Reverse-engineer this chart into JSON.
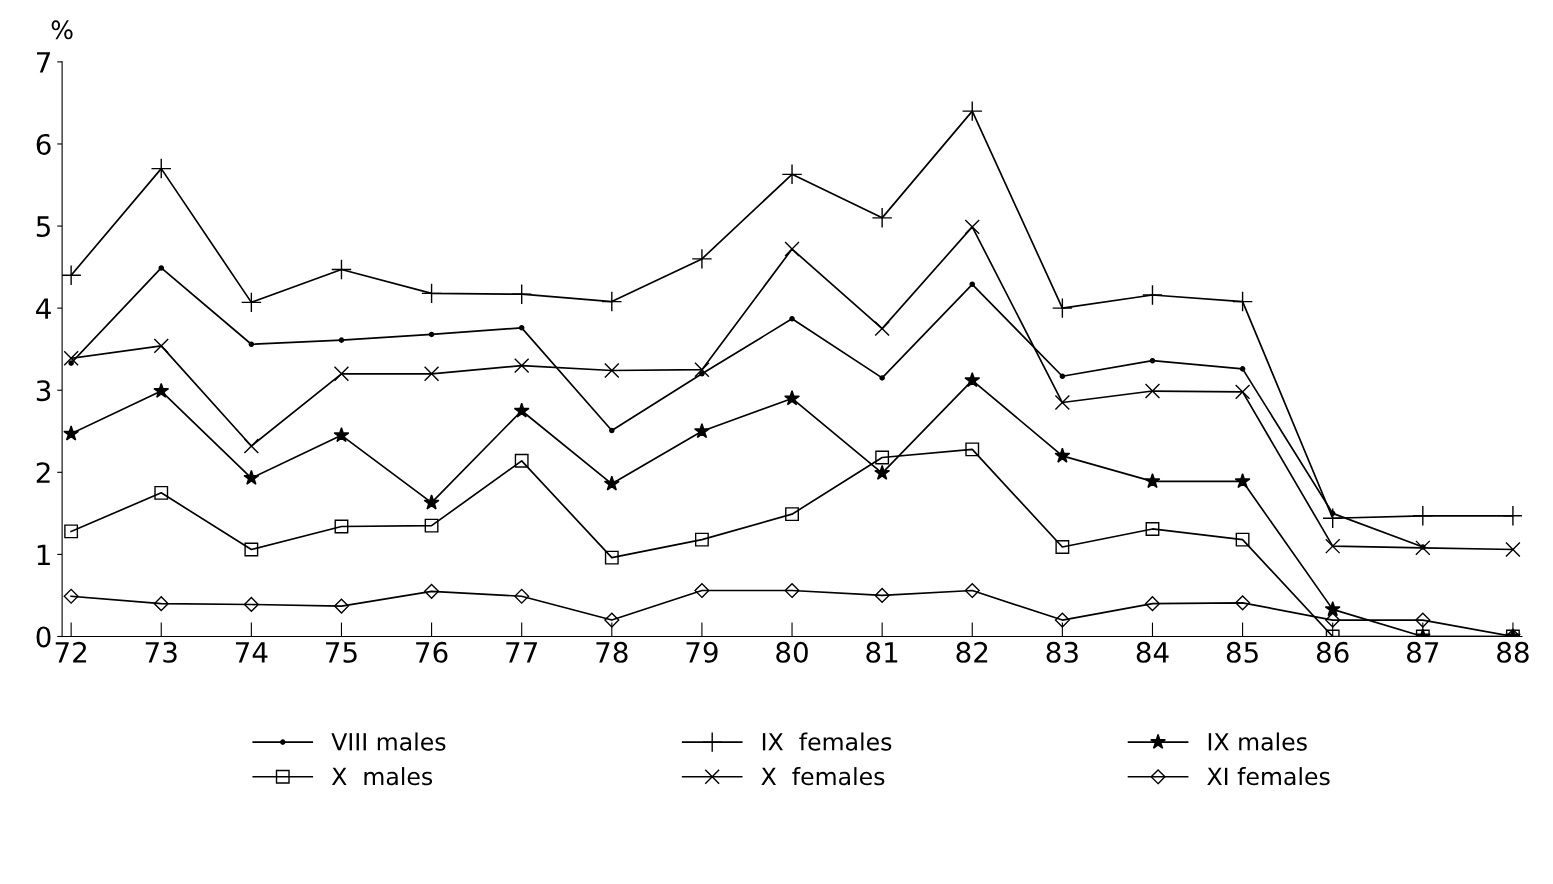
{
  "chart_data": {
    "type": "line",
    "ylabel": "%",
    "categories": [
      "72",
      "73",
      "74",
      "75",
      "76",
      "77",
      "78",
      "79",
      "80",
      "81",
      "82",
      "83",
      "84",
      "85",
      "86",
      "87",
      "88"
    ],
    "ylim": [
      0,
      7
    ],
    "yticks": [
      0,
      1,
      2,
      3,
      4,
      5,
      6,
      7
    ],
    "grid": false,
    "legend": "bottom",
    "line_style": "solid",
    "series": [
      {
        "name": "VIII males",
        "color": "#000000",
        "marker": "circle",
        "values": [
          3.33,
          4.49,
          3.56,
          3.61,
          3.68,
          3.76,
          2.51,
          3.2,
          3.87,
          3.15,
          4.29,
          3.17,
          3.36,
          3.26,
          1.5,
          1.09,
          null
        ]
      },
      {
        "name": "X  males",
        "color": "#000000",
        "marker": "square",
        "values": [
          1.28,
          1.75,
          1.06,
          1.34,
          1.35,
          2.14,
          0.96,
          1.18,
          1.49,
          2.18,
          2.28,
          1.09,
          1.31,
          1.18,
          0,
          0,
          0
        ]
      },
      {
        "name": "IX  females",
        "color": "#000000",
        "marker": "plus",
        "values": [
          4.4,
          5.7,
          4.07,
          4.47,
          4.18,
          4.17,
          4.08,
          4.6,
          5.63,
          5.1,
          6.4,
          4.0,
          4.16,
          4.08,
          1.44,
          1.47,
          1.47
        ]
      },
      {
        "name": "X  females",
        "color": "#000000",
        "marker": "cross",
        "values": [
          3.39,
          3.54,
          2.32,
          3.2,
          3.2,
          3.3,
          3.24,
          3.25,
          4.72,
          3.75,
          4.99,
          2.85,
          2.99,
          2.98,
          1.1,
          1.08,
          1.06
        ]
      },
      {
        "name": "IX males",
        "color": "#000000",
        "marker": "star",
        "values": [
          2.47,
          2.99,
          1.93,
          2.45,
          1.63,
          2.75,
          1.86,
          2.5,
          2.9,
          1.99,
          3.12,
          2.2,
          1.89,
          1.89,
          0.33,
          0,
          0
        ]
      },
      {
        "name": "XI females",
        "color": "#000000",
        "marker": "diamond",
        "values": [
          0.49,
          0.4,
          0.39,
          0.37,
          0.55,
          0.49,
          0.2,
          0.56,
          0.56,
          0.5,
          0.56,
          0.2,
          0.4,
          0.41,
          0.2,
          0.2,
          0
        ]
      }
    ]
  }
}
